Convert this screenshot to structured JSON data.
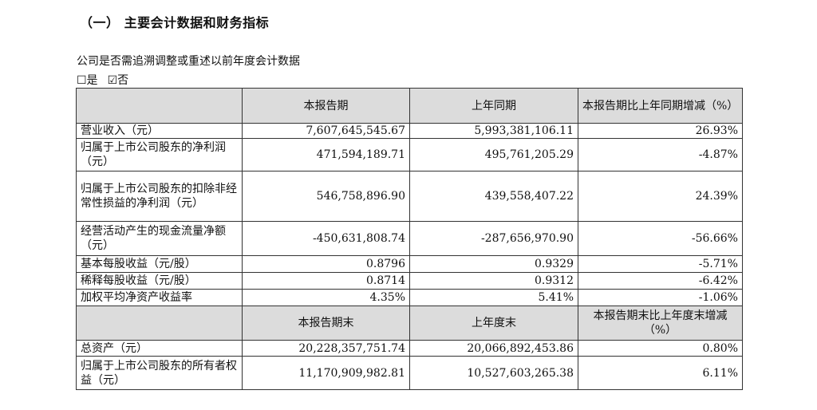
{
  "section_title": "（一）  主要会计数据和财务指标",
  "question": "公司是否需追溯调整或重述以前年度会计数据",
  "options": {
    "yes": "☐是",
    "no": "☑否"
  },
  "header1": {
    "col1": "本报告期",
    "col2": "上年同期",
    "col3": "本报告期比上年同期增减（%）"
  },
  "rows1": [
    {
      "label": "营业收入（元）",
      "v1": "7,607,645,545.67",
      "v2": "5,993,381,106.11",
      "v3": "26.93%"
    },
    {
      "label": "归属于上市公司股东的净利润（元）",
      "v1": "471,594,189.71",
      "v2": "495,761,205.29",
      "v3": "-4.87%"
    },
    {
      "label": "归属于上市公司股东的扣除非经常性损益的净利润（元）",
      "v1": "546,758,896.90",
      "v2": "439,558,407.22",
      "v3": "24.39%"
    },
    {
      "label": "经营活动产生的现金流量净额（元）",
      "v1": "-450,631,808.74",
      "v2": "-287,656,970.90",
      "v3": "-56.66%"
    },
    {
      "label": "基本每股收益（元/股）",
      "v1": "0.8796",
      "v2": "0.9329",
      "v3": "-5.71%"
    },
    {
      "label": "稀释每股收益（元/股）",
      "v1": "0.8714",
      "v2": "0.9312",
      "v3": "-6.42%"
    },
    {
      "label": "加权平均净资产收益率",
      "v1": "4.35%",
      "v2": "5.41%",
      "v3": "-1.06%"
    }
  ],
  "header2": {
    "col1": "本报告期末",
    "col2": "上年度末",
    "col3": "本报告期末比上年度末增减（%）"
  },
  "rows2": [
    {
      "label": "总资产（元）",
      "v1": "20,228,357,751.74",
      "v2": "20,066,892,453.86",
      "v3": "0.80%"
    },
    {
      "label": "归属于上市公司股东的所有者权益（元）",
      "v1": "11,170,909,982.81",
      "v2": "10,527,603,265.38",
      "v3": "6.11%"
    }
  ]
}
